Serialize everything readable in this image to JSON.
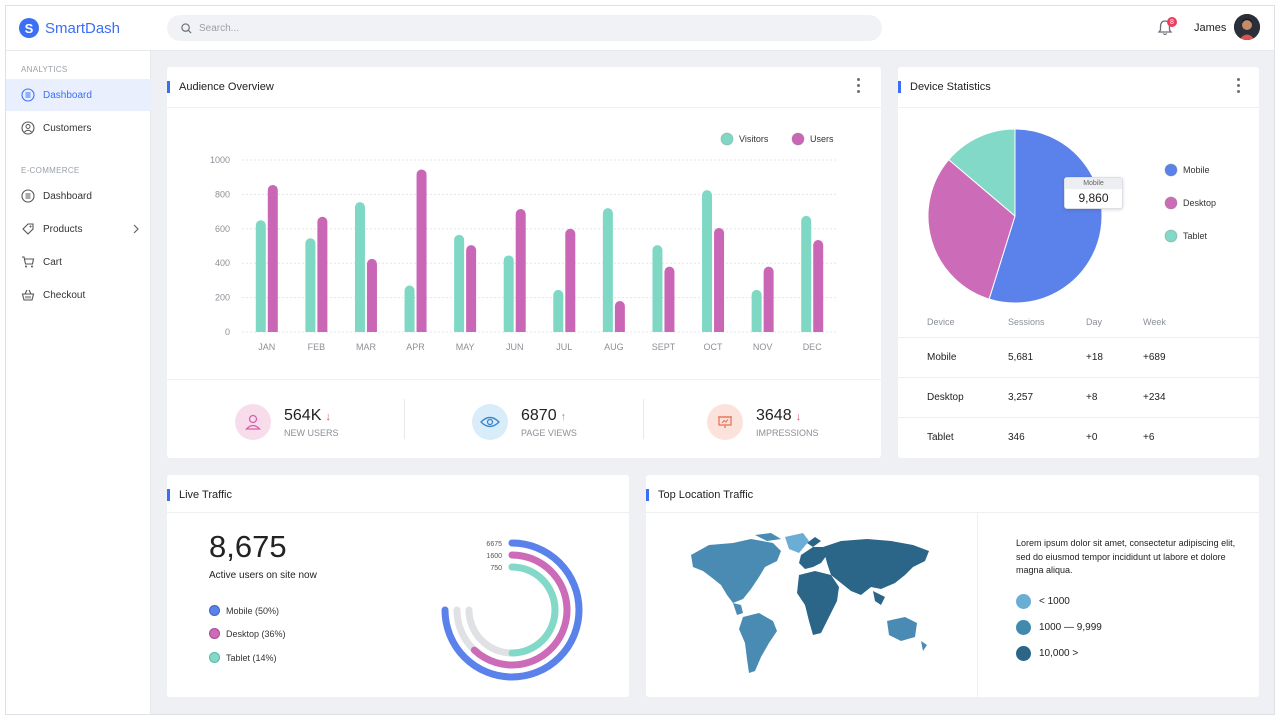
{
  "app": {
    "name": "SmartDash",
    "logo_letter": "S"
  },
  "header": {
    "search_placeholder": "Search...",
    "notifications": "8",
    "user_name": "James"
  },
  "sidebar": {
    "sections": [
      {
        "title": "ANALYTICS",
        "items": [
          {
            "label": "Dashboard",
            "icon": "list-icon",
            "active": true
          },
          {
            "label": "Customers",
            "icon": "user-circle-icon"
          }
        ]
      },
      {
        "title": "E-COMMERCE",
        "items": [
          {
            "label": "Dashboard",
            "icon": "list-icon"
          },
          {
            "label": "Products",
            "icon": "tag-icon",
            "has_submenu": true
          },
          {
            "label": "Cart",
            "icon": "cart-icon"
          },
          {
            "label": "Checkout",
            "icon": "basket-icon"
          }
        ]
      }
    ]
  },
  "audience": {
    "title": "Audience Overview",
    "stats": [
      {
        "value": "564K",
        "label": "NEW USERS",
        "trend": "↓",
        "icon": "user-icon",
        "color": "#d660a8"
      },
      {
        "value": "6870",
        "label": "PAGE VIEWS",
        "trend": "↑",
        "icon": "eye-icon",
        "color": "#3a87c8"
      },
      {
        "value": "3648",
        "label": "IMPRESSIONS",
        "trend": "↓",
        "icon": "presentation-icon",
        "color": "#e8775a"
      }
    ]
  },
  "chart_data": [
    {
      "type": "bar",
      "categories": [
        "JAN",
        "FEB",
        "MAR",
        "APR",
        "MAY",
        "JUN",
        "JUL",
        "AUG",
        "SEPT",
        "OCT",
        "NOV",
        "DEC"
      ],
      "series": [
        {
          "name": "Visitors",
          "color": "#7fd8c4",
          "values": [
            650,
            545,
            755,
            270,
            565,
            445,
            245,
            720,
            505,
            825,
            245,
            675
          ]
        },
        {
          "name": "Users",
          "color": "#c967b6",
          "values": [
            855,
            670,
            425,
            945,
            505,
            715,
            600,
            180,
            380,
            605,
            380,
            535
          ]
        }
      ],
      "yticks": [
        0,
        200,
        400,
        600,
        800,
        1000
      ],
      "ylim": [
        0,
        1000
      ],
      "legend": "top-right",
      "grid": true
    },
    {
      "type": "pie",
      "categories": [
        "Mobile",
        "Desktop",
        "Tablet"
      ],
      "values": [
        9860,
        5650,
        2480
      ],
      "colors": [
        "#5b82ea",
        "#cc6cb8",
        "#82d9c8"
      ],
      "legend": "right"
    }
  ],
  "device": {
    "title": "Device Statistics",
    "tooltip_label": "Mobile",
    "tooltip_value": "9,860",
    "table_headers": [
      "Device",
      "Sessions",
      "Day",
      "Week"
    ],
    "rows": [
      [
        "Mobile",
        "5,681",
        "+18",
        "+689"
      ],
      [
        "Desktop",
        "3,257",
        "+8",
        "+234"
      ],
      [
        "Tablet",
        "346",
        "+0",
        "+6"
      ]
    ]
  },
  "live": {
    "title": "Live Traffic",
    "value": "8,675",
    "subtitle": "Active users on site now",
    "legend": [
      {
        "label": "Mobile",
        "pct": "(50%)",
        "color": "#5b82ea"
      },
      {
        "label": "Desktop",
        "pct": "(36%)",
        "color": "#cc6cb8"
      },
      {
        "label": "Tablet",
        "pct": "(14%)",
        "color": "#82d9c8"
      }
    ],
    "rings": [
      {
        "label": "6675",
        "color": "#5b82ea",
        "fraction": 0.75
      },
      {
        "label": "1600",
        "color": "#cc6cb8",
        "fraction": 0.62
      },
      {
        "label": "750",
        "color": "#82d9c8",
        "fraction": 0.5
      }
    ]
  },
  "location": {
    "title": "Top Location Traffic",
    "description": "Lorem ipsum dolor sit amet, consectetur adipiscing elit, sed do eiusmod tempor incididunt ut labore et dolore magna aliqua.",
    "legend": [
      {
        "label": "< 1000",
        "color": "#6aaed6"
      },
      {
        "label": "1000 — 9,999",
        "color": "#4289b0"
      },
      {
        "label": "10,000 >",
        "color": "#2b6587"
      }
    ]
  }
}
